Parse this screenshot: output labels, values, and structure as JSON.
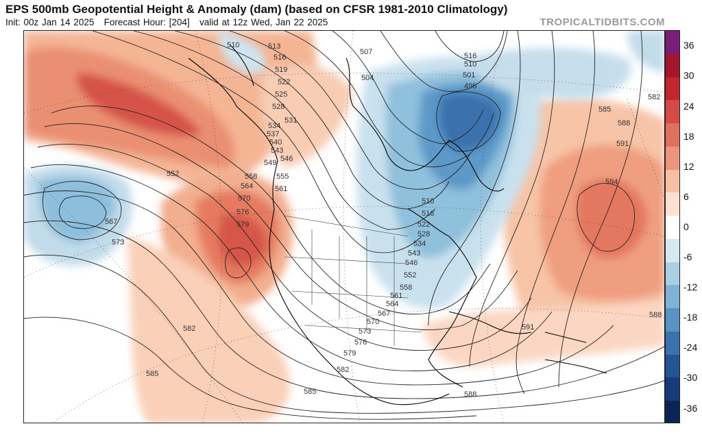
{
  "header": {
    "title": "EPS 500mb Geopotential Height & Anomaly (dam) (based on CFSR 1981-2010 Climatology)",
    "init": "Init: 00z Jan 14 2025",
    "forecast_hour": "Forecast Hour: [204]",
    "valid": "valid at 12z Wed, Jan 22 2025",
    "brand": "TROPICALTIDBITS.COM"
  },
  "colorbar": {
    "ticks": [
      "36",
      "30",
      "24",
      "18",
      "12",
      "6",
      "0",
      "-6",
      "-12",
      "-18",
      "-24",
      "-30",
      "-36"
    ],
    "colors": [
      "#7b1e7a",
      "#a3162b",
      "#c2272d",
      "#d64a45",
      "#e0705e",
      "#eb957d",
      "#f6bfa4",
      "#fde0cf",
      "#ffffff",
      "#d5e8f2",
      "#a9cfe2",
      "#7fb2d4",
      "#5893c2",
      "#3a72ad",
      "#235596",
      "#153b78",
      "#0b2456"
    ]
  },
  "map": {
    "contour_labels": [
      "510",
      "513",
      "516",
      "519",
      "522",
      "525",
      "528",
      "531",
      "534",
      "537",
      "540",
      "543",
      "546",
      "549",
      "552",
      "555",
      "558",
      "561",
      "564",
      "567",
      "570",
      "573",
      "576",
      "579",
      "582",
      "585",
      "588",
      "591",
      "594",
      "501",
      "495",
      "507",
      "504"
    ],
    "anomaly_centers": [
      {
        "name": "north-pacific-ridge",
        "sign": "positive"
      },
      {
        "name": "west-coast-ridge",
        "sign": "positive"
      },
      {
        "name": "central-pacific-low",
        "sign": "negative"
      },
      {
        "name": "eastern-canada-trough",
        "sign": "negative"
      },
      {
        "name": "atlantic-ridge",
        "sign": "positive"
      }
    ]
  }
}
